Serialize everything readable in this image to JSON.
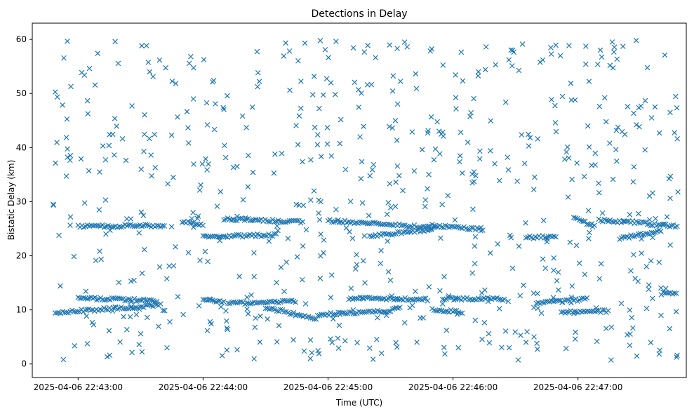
{
  "chart_data": {
    "type": "scatter",
    "title": "Detections in Delay",
    "xlabel": "Time (UTC)",
    "ylabel": "Bistatic Delay (km)",
    "marker": "x",
    "color": "#1f77b4",
    "grid": false,
    "legend": "none",
    "xlim": [
      "2025-04-06 22:42:38",
      "2025-04-06 22:47:52"
    ],
    "ylim": [
      -2.5,
      63
    ],
    "x_ticks": [
      "2025-04-06 22:43:00",
      "2025-04-06 22:44:00",
      "2025-04-06 22:45:00",
      "2025-04-06 22:46:00",
      "2025-04-06 22:47:00"
    ],
    "y_ticks": [
      0,
      10,
      20,
      30,
      40,
      50,
      60
    ],
    "data_time_range": [
      "2025-04-06 22:42:48",
      "2025-04-06 22:47:48"
    ],
    "series": [
      {
        "name": "detections",
        "description": "track segments",
        "tracks": [
          {
            "from": [
              "2025-04-06 22:42:49",
              9.5
            ],
            "to": [
              "2025-04-06 22:43:18",
              10.3
            ]
          },
          {
            "from": [
              "2025-04-06 22:43:00",
              12.2
            ],
            "to": [
              "2025-04-06 22:43:38",
              11.7
            ]
          },
          {
            "from": [
              "2025-04-06 22:43:00",
              25.4
            ],
            "to": [
              "2025-04-06 22:43:42",
              25.6
            ]
          },
          {
            "from": [
              "2025-04-06 22:43:18",
              10.2
            ],
            "to": [
              "2025-04-06 22:43:40",
              11.0
            ]
          },
          {
            "from": [
              "2025-04-06 22:43:50",
              26.3
            ],
            "to": [
              "2025-04-06 22:44:00",
              25.8
            ]
          },
          {
            "from": [
              "2025-04-06 22:44:00",
              11.9
            ],
            "to": [
              "2025-04-06 22:44:10",
              11.5
            ]
          },
          {
            "from": [
              "2025-04-06 22:44:00",
              23.5
            ],
            "to": [
              "2025-04-06 22:44:36",
              23.9
            ]
          },
          {
            "from": [
              "2025-04-06 22:44:10",
              26.8
            ],
            "to": [
              "2025-04-06 22:44:48",
              26.3
            ]
          },
          {
            "from": [
              "2025-04-06 22:44:12",
              11.2
            ],
            "to": [
              "2025-04-06 22:44:45",
              11.6
            ]
          },
          {
            "from": [
              "2025-04-06 22:44:30",
              10.5
            ],
            "to": [
              "2025-04-06 22:44:55",
              8.2
            ]
          },
          {
            "from": [
              "2025-04-06 22:44:55",
              9.1
            ],
            "to": [
              "2025-04-06 22:45:30",
              9.8
            ]
          },
          {
            "from": [
              "2025-04-06 22:45:00",
              26.5
            ],
            "to": [
              "2025-04-06 22:45:52",
              25.2
            ]
          },
          {
            "from": [
              "2025-04-06 22:45:10",
              12.2
            ],
            "to": [
              "2025-04-06 22:45:48",
              11.9
            ]
          },
          {
            "from": [
              "2025-04-06 22:45:30",
              10.0
            ],
            "to": [
              "2025-04-06 22:45:35",
              10.5
            ]
          },
          {
            "from": [
              "2025-04-06 22:45:20",
              23.6
            ],
            "to": [
              "2025-04-06 22:45:50",
              24.9
            ]
          },
          {
            "from": [
              "2025-04-06 22:45:50",
              25.6
            ],
            "to": [
              "2025-04-06 22:46:15",
              24.8
            ]
          },
          {
            "from": [
              "2025-04-06 22:45:50",
              10.0
            ],
            "to": [
              "2025-04-06 22:46:05",
              9.6
            ]
          },
          {
            "from": [
              "2025-04-06 22:45:55",
              12.1
            ],
            "to": [
              "2025-04-06 22:46:25",
              12.0
            ]
          },
          {
            "from": [
              "2025-04-06 22:46:35",
              23.4
            ],
            "to": [
              "2025-04-06 22:46:50",
              23.5
            ]
          },
          {
            "from": [
              "2025-04-06 22:46:40",
              11.3
            ],
            "to": [
              "2025-04-06 22:47:05",
              12.0
            ]
          },
          {
            "from": [
              "2025-04-06 22:46:52",
              9.6
            ],
            "to": [
              "2025-04-06 22:47:15",
              9.8
            ]
          },
          {
            "from": [
              "2025-04-06 22:46:58",
              27.2
            ],
            "to": [
              "2025-04-06 22:47:08",
              25.4
            ]
          },
          {
            "from": [
              "2025-04-06 22:47:10",
              26.6
            ],
            "to": [
              "2025-04-06 22:47:35",
              26.0
            ]
          },
          {
            "from": [
              "2025-04-06 22:47:20",
              23.2
            ],
            "to": [
              "2025-04-06 22:47:40",
              24.6
            ]
          },
          {
            "from": [
              "2025-04-06 22:47:35",
              25.8
            ],
            "to": [
              "2025-04-06 22:47:48",
              25.5
            ]
          },
          {
            "from": [
              "2025-04-06 22:47:40",
              13.0
            ],
            "to": [
              "2025-04-06 22:47:48",
              13.2
            ]
          }
        ]
      }
    ]
  }
}
